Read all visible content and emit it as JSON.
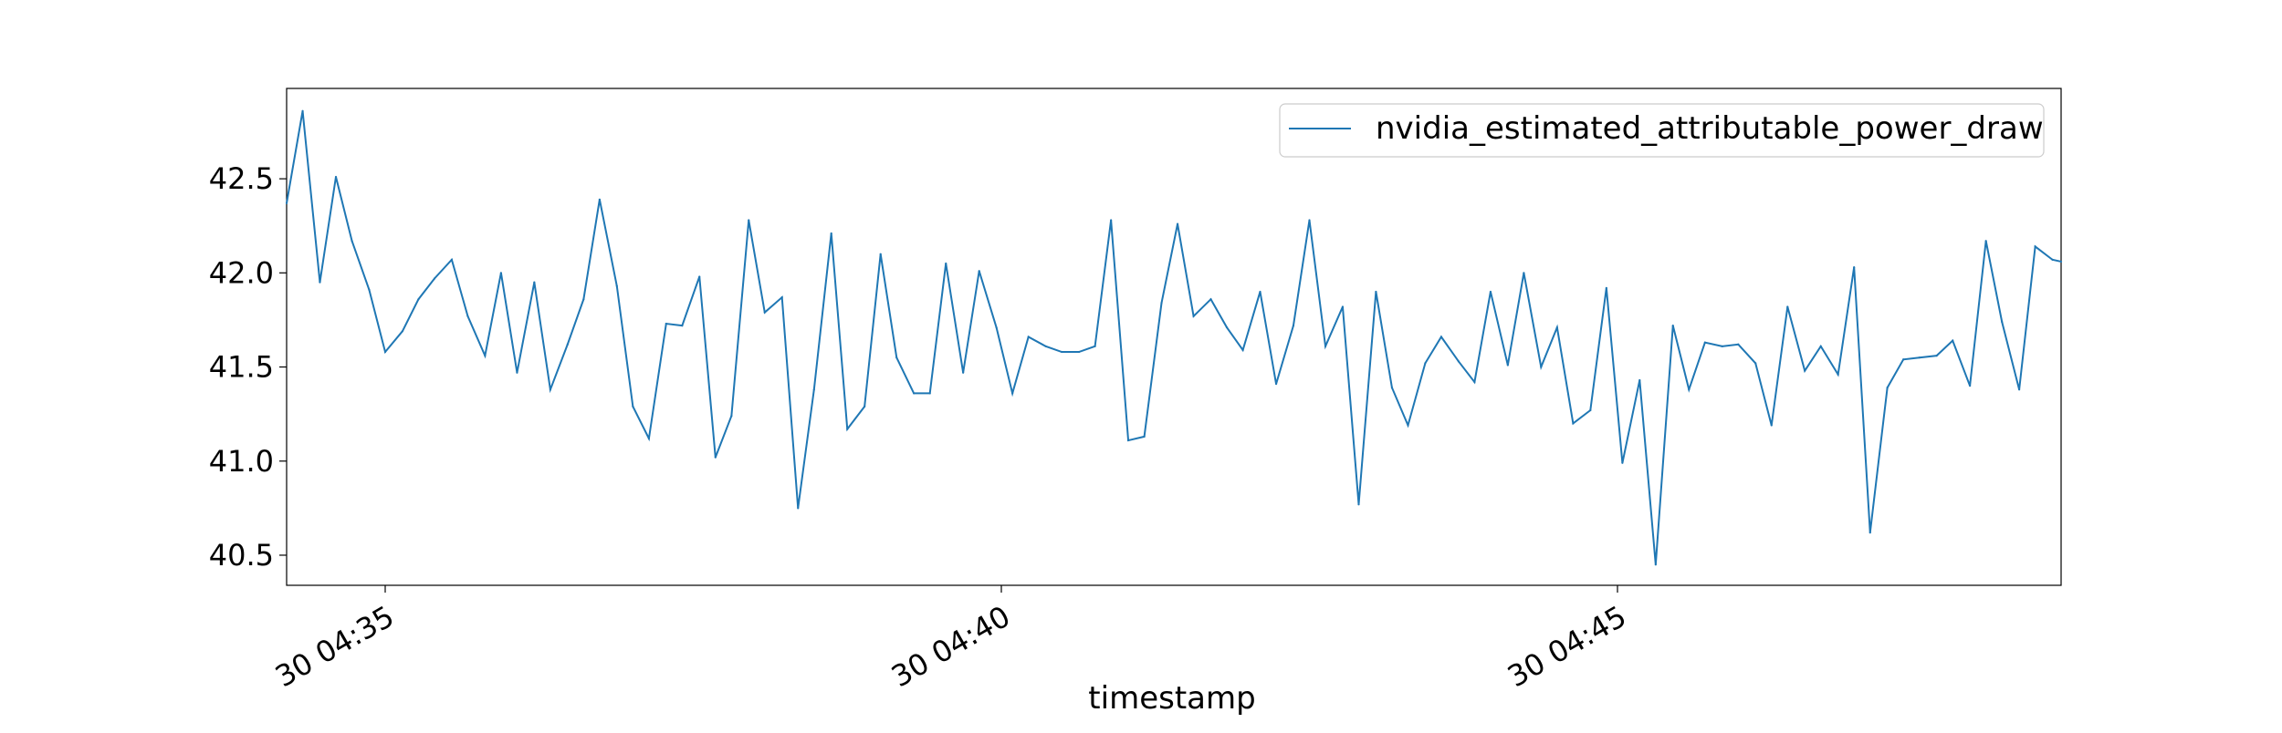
{
  "chart_data": {
    "type": "line",
    "xlabel": "timestamp",
    "ylabel": "",
    "x_ticks": [
      {
        "minute": 35,
        "label": "30 04:35"
      },
      {
        "minute": 40,
        "label": "30 04:40"
      },
      {
        "minute": 45,
        "label": "30 04:45"
      }
    ],
    "y_ticks": [
      {
        "value": 40.5,
        "label": "40.5"
      },
      {
        "value": 41.0,
        "label": "41.0"
      },
      {
        "value": 41.5,
        "label": "41.5"
      },
      {
        "value": 42.0,
        "label": "42.0"
      },
      {
        "value": 42.5,
        "label": "42.5"
      }
    ],
    "xlim_minutes": [
      34.2,
      48.6
    ],
    "ylim": [
      40.34,
      42.98
    ],
    "legend_position": "upper-right",
    "grid": false,
    "colors": {
      "series": "#1f77b4",
      "axes": "#000000",
      "legend_border": "#cccccc"
    },
    "series": [
      {
        "name": "nvidia_estimated_attributable_power_draw",
        "x_minutes": [
          34.2,
          34.33,
          34.47,
          34.6,
          34.73,
          34.87,
          35.0,
          35.14,
          35.27,
          35.4,
          35.54,
          35.67,
          35.81,
          35.94,
          36.07,
          36.21,
          36.34,
          36.48,
          36.61,
          36.74,
          36.88,
          37.01,
          37.14,
          37.28,
          37.41,
          37.55,
          37.68,
          37.81,
          37.95,
          38.08,
          38.22,
          38.35,
          38.48,
          38.62,
          38.75,
          38.89,
          39.02,
          39.15,
          39.29,
          39.42,
          39.55,
          39.69,
          39.82,
          39.96,
          40.09,
          40.22,
          40.36,
          40.49,
          40.63,
          40.76,
          40.89,
          41.03,
          41.16,
          41.3,
          41.43,
          41.56,
          41.7,
          41.83,
          41.96,
          42.1,
          42.23,
          42.37,
          42.5,
          42.63,
          42.77,
          42.9,
          43.04,
          43.17,
          43.3,
          43.44,
          43.57,
          43.71,
          43.84,
          43.97,
          44.11,
          44.24,
          44.38,
          44.51,
          44.64,
          44.78,
          44.91,
          45.04,
          45.18,
          45.31,
          45.45,
          45.58,
          45.71,
          45.85,
          45.98,
          46.12,
          46.25,
          46.38,
          46.52,
          46.65,
          46.79,
          46.92,
          47.05,
          47.19,
          47.32,
          47.45,
          47.59,
          47.72,
          47.86,
          47.99,
          48.12,
          48.26,
          48.39,
          48.53,
          48.6
        ],
        "values": [
          42.37,
          42.86,
          41.95,
          42.51,
          42.17,
          41.91,
          41.58,
          41.69,
          41.86,
          41.97,
          42.07,
          41.77,
          41.56,
          42.0,
          41.47,
          41.95,
          41.38,
          41.62,
          41.86,
          42.39,
          41.93,
          41.29,
          41.12,
          41.73,
          41.72,
          41.98,
          41.02,
          41.24,
          42.28,
          41.79,
          41.87,
          40.75,
          41.38,
          42.21,
          41.17,
          41.29,
          42.1,
          41.55,
          41.36,
          41.36,
          42.05,
          41.47,
          42.01,
          41.71,
          41.36,
          41.66,
          41.61,
          41.58,
          41.58,
          41.61,
          42.28,
          41.11,
          41.13,
          41.84,
          42.26,
          41.77,
          41.86,
          41.71,
          41.59,
          41.9,
          41.41,
          41.72,
          42.28,
          41.61,
          41.82,
          40.77,
          41.9,
          41.39,
          41.19,
          41.52,
          41.66,
          41.53,
          41.42,
          41.9,
          41.51,
          42.0,
          41.5,
          41.71,
          41.2,
          41.27,
          41.92,
          40.99,
          41.43,
          40.45,
          41.72,
          41.38,
          41.63,
          41.61,
          41.62,
          41.52,
          41.19,
          41.82,
          41.48,
          41.61,
          41.46,
          42.03,
          40.62,
          41.39,
          41.54,
          41.55,
          41.56,
          41.64,
          41.4,
          42.17,
          41.74,
          41.38,
          42.14,
          42.07,
          42.06
        ]
      }
    ]
  }
}
